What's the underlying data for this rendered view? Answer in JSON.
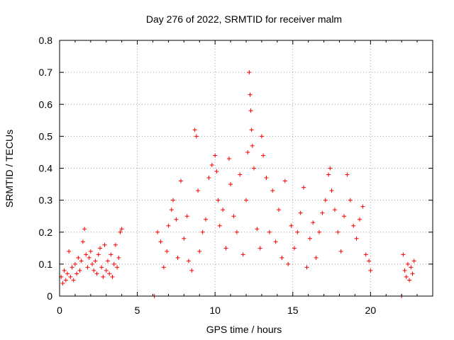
{
  "chart_data": {
    "type": "scatter",
    "title": "Day 276 of 2022, SRMTID for receiver malm",
    "xlabel": "GPS time / hours",
    "ylabel": "SRMTID / TECUs",
    "xlim": [
      0,
      24
    ],
    "ylim": [
      0,
      0.8
    ],
    "xticks": [
      "0",
      "5",
      "10",
      "15",
      "20"
    ],
    "xtick_values": [
      0,
      5,
      10,
      15,
      20
    ],
    "yticks": [
      "0",
      "0.1",
      "0.2",
      "0.3",
      "0.4",
      "0.5",
      "0.6",
      "0.7",
      "0.8"
    ],
    "ytick_values": [
      0,
      0.1,
      0.2,
      0.3,
      0.4,
      0.5,
      0.6,
      0.7,
      0.8
    ],
    "grid": true,
    "marker": "plus",
    "series": [
      {
        "name": "SRMTID",
        "color": "#ff0000",
        "description": "dense scatter of SRMTID values per satellite arc",
        "points": [
          [
            0.1,
            0.06
          ],
          [
            0.2,
            0.04
          ],
          [
            0.3,
            0.08
          ],
          [
            0.4,
            0.05
          ],
          [
            0.5,
            0.07
          ],
          [
            0.6,
            0.14
          ],
          [
            0.7,
            0.06
          ],
          [
            0.8,
            0.09
          ],
          [
            0.9,
            0.05
          ],
          [
            1.0,
            0.1
          ],
          [
            1.1,
            0.07
          ],
          [
            1.2,
            0.12
          ],
          [
            1.3,
            0.08
          ],
          [
            1.4,
            0.11
          ],
          [
            1.5,
            0.17
          ],
          [
            1.6,
            0.21
          ],
          [
            1.7,
            0.13
          ],
          [
            1.8,
            0.09
          ],
          [
            1.9,
            0.12
          ],
          [
            2.0,
            0.14
          ],
          [
            2.1,
            0.1
          ],
          [
            2.2,
            0.08
          ],
          [
            2.3,
            0.11
          ],
          [
            2.4,
            0.07
          ],
          [
            2.5,
            0.13
          ],
          [
            2.6,
            0.15
          ],
          [
            2.7,
            0.09
          ],
          [
            2.8,
            0.06
          ],
          [
            2.9,
            0.16
          ],
          [
            3.0,
            0.08
          ],
          [
            3.1,
            0.11
          ],
          [
            3.2,
            0.07
          ],
          [
            3.3,
            0.13
          ],
          [
            3.4,
            0.06
          ],
          [
            3.5,
            0.1
          ],
          [
            3.6,
            0.16
          ],
          [
            3.7,
            0.09
          ],
          [
            3.8,
            0.12
          ],
          [
            3.9,
            0.2
          ],
          [
            4.0,
            0.21
          ],
          [
            6.1,
            0.0
          ],
          [
            6.3,
            0.2
          ],
          [
            6.5,
            0.17
          ],
          [
            6.7,
            0.09
          ],
          [
            6.9,
            0.14
          ],
          [
            7.0,
            0.22
          ],
          [
            7.2,
            0.27
          ],
          [
            7.3,
            0.3
          ],
          [
            7.5,
            0.24
          ],
          [
            7.6,
            0.12
          ],
          [
            7.8,
            0.36
          ],
          [
            8.0,
            0.18
          ],
          [
            8.2,
            0.25
          ],
          [
            8.3,
            0.11
          ],
          [
            8.5,
            0.08
          ],
          [
            8.7,
            0.52
          ],
          [
            8.8,
            0.5
          ],
          [
            8.9,
            0.33
          ],
          [
            9.0,
            0.14
          ],
          [
            9.2,
            0.2
          ],
          [
            9.4,
            0.24
          ],
          [
            9.6,
            0.37
          ],
          [
            9.8,
            0.41
          ],
          [
            10.0,
            0.44
          ],
          [
            10.1,
            0.39
          ],
          [
            10.2,
            0.3
          ],
          [
            10.3,
            0.22
          ],
          [
            10.5,
            0.27
          ],
          [
            10.7,
            0.15
          ],
          [
            10.9,
            0.43
          ],
          [
            11.0,
            0.35
          ],
          [
            11.2,
            0.25
          ],
          [
            11.4,
            0.2
          ],
          [
            11.6,
            0.38
          ],
          [
            11.8,
            0.13
          ],
          [
            12.0,
            0.3
          ],
          [
            12.1,
            0.45
          ],
          [
            12.2,
            0.7
          ],
          [
            12.25,
            0.63
          ],
          [
            12.3,
            0.58
          ],
          [
            12.35,
            0.52
          ],
          [
            12.4,
            0.47
          ],
          [
            12.5,
            0.4
          ],
          [
            12.7,
            0.21
          ],
          [
            12.9,
            0.15
          ],
          [
            13.0,
            0.5
          ],
          [
            13.1,
            0.44
          ],
          [
            13.3,
            0.37
          ],
          [
            13.5,
            0.2
          ],
          [
            13.7,
            0.33
          ],
          [
            13.9,
            0.17
          ],
          [
            14.1,
            0.27
          ],
          [
            14.3,
            0.12
          ],
          [
            14.5,
            0.36
          ],
          [
            14.7,
            0.1
          ],
          [
            14.9,
            0.22
          ],
          [
            15.1,
            0.15
          ],
          [
            15.3,
            0.2
          ],
          [
            15.5,
            0.26
          ],
          [
            15.7,
            0.34
          ],
          [
            15.9,
            0.09
          ],
          [
            16.1,
            0.18
          ],
          [
            16.3,
            0.23
          ],
          [
            16.5,
            0.12
          ],
          [
            16.7,
            0.2
          ],
          [
            16.9,
            0.26
          ],
          [
            17.1,
            0.3
          ],
          [
            17.3,
            0.38
          ],
          [
            17.4,
            0.4
          ],
          [
            17.5,
            0.33
          ],
          [
            17.7,
            0.27
          ],
          [
            17.9,
            0.2
          ],
          [
            18.1,
            0.14
          ],
          [
            18.3,
            0.25
          ],
          [
            18.5,
            0.38
          ],
          [
            18.7,
            0.3
          ],
          [
            18.9,
            0.22
          ],
          [
            19.1,
            0.18
          ],
          [
            19.3,
            0.24
          ],
          [
            19.5,
            0.28
          ],
          [
            19.7,
            0.13
          ],
          [
            19.9,
            0.11
          ],
          [
            20.0,
            0.08
          ],
          [
            22.0,
            0.0
          ],
          [
            22.1,
            0.13
          ],
          [
            22.2,
            0.08
          ],
          [
            22.3,
            0.06
          ],
          [
            22.4,
            0.1
          ],
          [
            22.5,
            0.05
          ],
          [
            22.6,
            0.09
          ],
          [
            22.7,
            0.07
          ],
          [
            22.8,
            0.11
          ]
        ]
      }
    ]
  }
}
